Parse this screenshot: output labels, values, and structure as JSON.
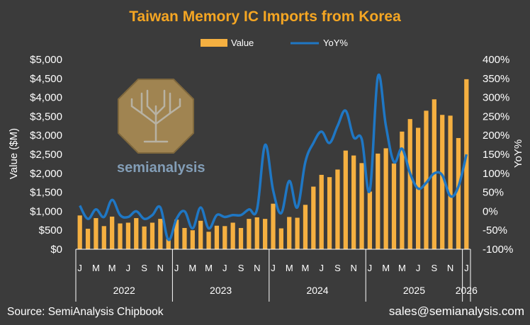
{
  "chart_data": {
    "type": "bar",
    "title": "Taiwan Memory IC Imports from Korea",
    "ylabel": "Value ($M)",
    "y2label": "YoY%",
    "ylim": [
      0,
      5000
    ],
    "y2lim": [
      -100,
      400
    ],
    "yticks": [
      "$0",
      "$500",
      "$1,000",
      "$1,500",
      "$2,000",
      "$2,500",
      "$3,000",
      "$3,500",
      "$4,000",
      "$4,500",
      "$5,000"
    ],
    "y2ticks": [
      "-100%",
      "-50%",
      "0%",
      "50%",
      "100%",
      "150%",
      "200%",
      "250%",
      "300%",
      "350%",
      "400%"
    ],
    "legend": {
      "position": "top",
      "entries": [
        "Value",
        "YoY%"
      ]
    },
    "grid": false,
    "colors": {
      "value": "#f5b041",
      "yoy": "#1f77c4",
      "title": "#f5a623",
      "background": "#3b3b3b"
    },
    "categories": [
      "Jan 2022",
      "Feb 2022",
      "Mar 2022",
      "Apr 2022",
      "May 2022",
      "Jun 2022",
      "Jul 2022",
      "Aug 2022",
      "Sep 2022",
      "Oct 2022",
      "Nov 2022",
      "Dec 2022",
      "Jan 2023",
      "Feb 2023",
      "Mar 2023",
      "Apr 2023",
      "May 2023",
      "Jun 2023",
      "Jul 2023",
      "Aug 2023",
      "Sep 2023",
      "Oct 2023",
      "Nov 2023",
      "Dec 2023",
      "Jan 2024",
      "Feb 2024",
      "Mar 2024",
      "Apr 2024",
      "May 2024",
      "Jun 2024",
      "Jul 2024",
      "Aug 2024",
      "Sep 2024",
      "Oct 2024",
      "Nov 2024",
      "Dec 2024",
      "Jan 2025",
      "Feb 2025",
      "Mar 2025",
      "Apr 2025",
      "May 2025",
      "Jun 2025",
      "Jul 2025",
      "Aug 2025",
      "Sep 2025",
      "Oct 2025",
      "Nov 2025",
      "Dec 2025",
      "Jan 2026"
    ],
    "series": [
      {
        "name": "Value",
        "type": "bar",
        "axis": "left",
        "values": [
          890,
          540,
          820,
          610,
          860,
          680,
          700,
          820,
          600,
          700,
          800,
          280,
          780,
          560,
          500,
          750,
          460,
          620,
          610,
          700,
          560,
          800,
          840,
          800,
          1200,
          550,
          850,
          830,
          1170,
          1650,
          1960,
          1900,
          2100,
          2600,
          2470,
          2270,
          1520,
          2520,
          2660,
          2260,
          3100,
          3430,
          3200,
          3650,
          3950,
          3540,
          3520,
          2930,
          4480
        ]
      },
      {
        "name": "YoY%",
        "type": "line",
        "axis": "right",
        "values": [
          15,
          -20,
          5,
          -15,
          30,
          -10,
          -15,
          0,
          -20,
          -10,
          10,
          -75,
          -20,
          0,
          -45,
          10,
          -45,
          -10,
          -15,
          -10,
          -10,
          5,
          5,
          175,
          55,
          -5,
          80,
          10,
          130,
          180,
          210,
          180,
          225,
          265,
          195,
          190,
          55,
          355,
          225,
          130,
          165,
          100,
          60,
          75,
          100,
          95,
          40,
          65,
          150
        ]
      }
    ],
    "xaxis": {
      "month_labels": [
        "J",
        "M",
        "M",
        "J",
        "S",
        "N",
        "J",
        "M",
        "M",
        "J",
        "S",
        "N",
        "J",
        "M",
        "M",
        "J",
        "S",
        "N",
        "J",
        "M",
        "M",
        "J",
        "S",
        "N",
        "J"
      ],
      "years": [
        "2022",
        "2023",
        "2024",
        "2025",
        "2026"
      ]
    }
  },
  "footer": {
    "source": "Source: SemiAnalysis Chipbook",
    "contact": "sales@semianalysis.com"
  },
  "watermark": {
    "text": "semianalysis",
    "icon": "tree-chip-icon"
  }
}
